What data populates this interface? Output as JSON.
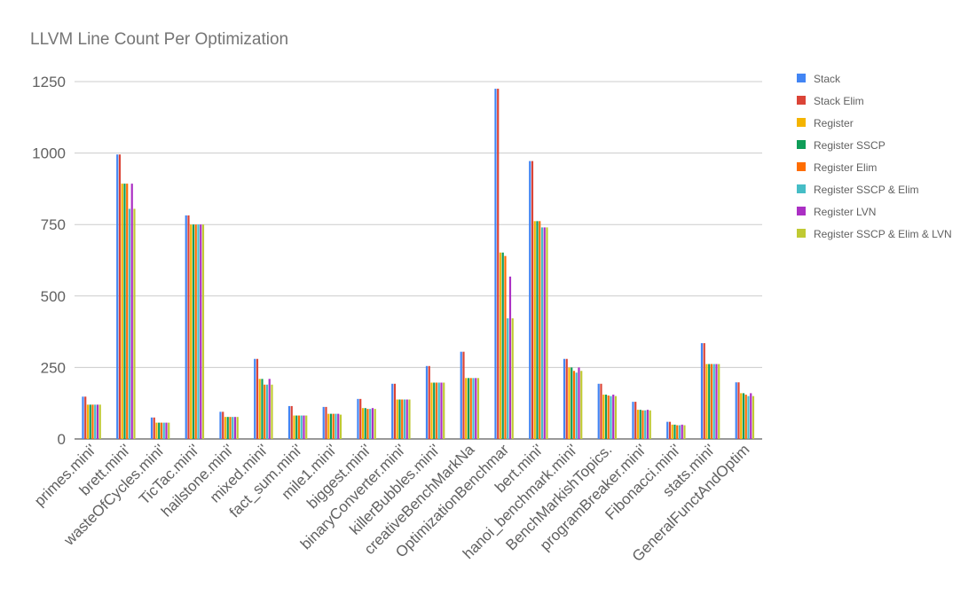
{
  "chart_data": {
    "type": "bar",
    "title": "LLVM Line Count Per Optimization",
    "ylim": [
      0,
      1250
    ],
    "yticks": [
      0,
      250,
      500,
      750,
      1000,
      1250
    ],
    "grid": true,
    "legend_position": "right",
    "categories": [
      "primes.mini'",
      "brett.mini'",
      "wasteOfCycles.mini'",
      "TicTac.mini'",
      "hailstone.mini'",
      "mixed.mini'",
      "fact_sum.mini'",
      "mile1.mini'",
      "biggest.mini'",
      "binaryConverter.mini'",
      "killerBubbles.mini'",
      "creativeBenchMarkNa",
      "OptimizationBenchmar",
      "bert.mini'",
      "hanoi_benchmark.mini'",
      "BenchMarkishTopics.",
      "programBreaker.mini'",
      "Fibonacci.mini'",
      "stats.mini'",
      "GeneralFunctAndOptim"
    ],
    "series": [
      {
        "name": "Stack",
        "color": "#4285F4",
        "values": [
          148,
          995,
          75,
          782,
          95,
          280,
          115,
          112,
          140,
          193,
          255,
          305,
          1225,
          972,
          280,
          193,
          130,
          60,
          335,
          198
        ]
      },
      {
        "name": "Stack Elim",
        "color": "#DB4437",
        "values": [
          148,
          995,
          75,
          782,
          95,
          280,
          115,
          112,
          140,
          193,
          255,
          305,
          1225,
          972,
          280,
          193,
          130,
          60,
          335,
          198
        ]
      },
      {
        "name": "Register",
        "color": "#F4B400",
        "values": [
          120,
          893,
          57,
          750,
          77,
          210,
          82,
          88,
          108,
          138,
          197,
          213,
          652,
          762,
          250,
          155,
          102,
          50,
          262,
          160
        ]
      },
      {
        "name": "Register SSCP",
        "color": "#0F9D58",
        "values": [
          120,
          893,
          57,
          750,
          77,
          210,
          82,
          88,
          108,
          138,
          197,
          213,
          652,
          762,
          250,
          155,
          102,
          50,
          262,
          160
        ]
      },
      {
        "name": "Register Elim",
        "color": "#FF6D00",
        "values": [
          120,
          893,
          57,
          750,
          77,
          190,
          82,
          88,
          105,
          138,
          197,
          213,
          640,
          762,
          238,
          152,
          100,
          48,
          262,
          155
        ]
      },
      {
        "name": "Register SSCP & Elim",
        "color": "#46BDC6",
        "values": [
          120,
          805,
          57,
          750,
          77,
          190,
          82,
          88,
          105,
          138,
          197,
          213,
          422,
          740,
          232,
          150,
          100,
          48,
          262,
          150
        ]
      },
      {
        "name": "Register LVN",
        "color": "#AB30C4",
        "values": [
          120,
          893,
          57,
          750,
          77,
          210,
          82,
          88,
          108,
          138,
          197,
          213,
          568,
          740,
          250,
          155,
          102,
          50,
          262,
          160
        ]
      },
      {
        "name": "Register SSCP & Elim & LVN",
        "color": "#C0CA33",
        "values": [
          120,
          805,
          57,
          750,
          77,
          190,
          82,
          85,
          105,
          138,
          197,
          213,
          422,
          740,
          238,
          150,
          100,
          48,
          262,
          150
        ]
      }
    ]
  }
}
